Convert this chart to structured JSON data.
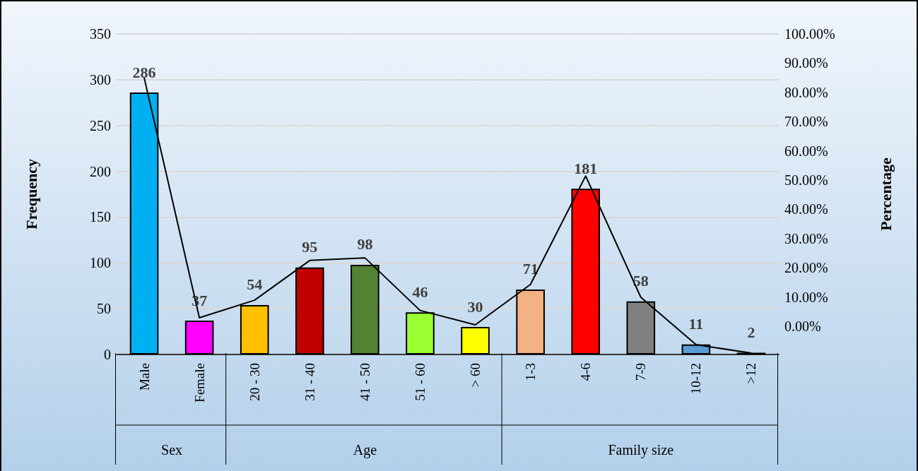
{
  "chart_data": {
    "type": "bar",
    "ylabel": "Frequency",
    "y2label": "Percentage",
    "categories": [
      "Male",
      "Female",
      "20 - 30",
      "31 - 40",
      "41 - 50",
      "51 - 60",
      "> 60",
      "1-3",
      "4-6",
      "7-9",
      "10-12",
      ">12"
    ],
    "series": [
      {
        "values": [
          286,
          37,
          54,
          95,
          98,
          46,
          30,
          71,
          181,
          58,
          11,
          2
        ],
        "value_labels": [
          "286",
          "37",
          "54",
          "95",
          "98",
          "46",
          "30",
          "71",
          "181",
          "58",
          "11",
          "2"
        ],
        "colors": [
          "#00b0f0",
          "#ff00ff",
          "#ffc000",
          "#c00000",
          "#548235",
          "#99ff33",
          "#ffff00",
          "#f4b183",
          "#ff0000",
          "#808080",
          "#5b9bd5",
          "#203864"
        ]
      },
      {
        "type": "line",
        "axis": "y2",
        "color": "#000000",
        "values": [
          85.0,
          2.9,
          8.9,
          22.5,
          23.4,
          5.4,
          0.5,
          14.3,
          51.4,
          9.9,
          -6.3,
          -9.2
        ]
      }
    ],
    "ylim": [
      0,
      350
    ],
    "yticks": [
      0,
      50,
      100,
      150,
      200,
      250,
      300,
      350
    ],
    "y2lim": [
      -9.66,
      100
    ],
    "y2ticks": [
      {
        "value": 0,
        "label": "0.00%"
      },
      {
        "value": 10,
        "label": "10.00%"
      },
      {
        "value": 20,
        "label": "20.00%"
      },
      {
        "value": 30,
        "label": "30.00%"
      },
      {
        "value": 40,
        "label": "40.00%"
      },
      {
        "value": 50,
        "label": "50.00%"
      },
      {
        "value": 60,
        "label": "60.00%"
      },
      {
        "value": 70,
        "label": "70.00%"
      },
      {
        "value": 80,
        "label": "80.00%"
      },
      {
        "value": 90,
        "label": "90.00%"
      },
      {
        "value": 100,
        "label": "100.00%"
      }
    ],
    "grid": "y",
    "marker": "none",
    "annotations": [
      "Sex",
      "Age",
      "Family size"
    ]
  }
}
